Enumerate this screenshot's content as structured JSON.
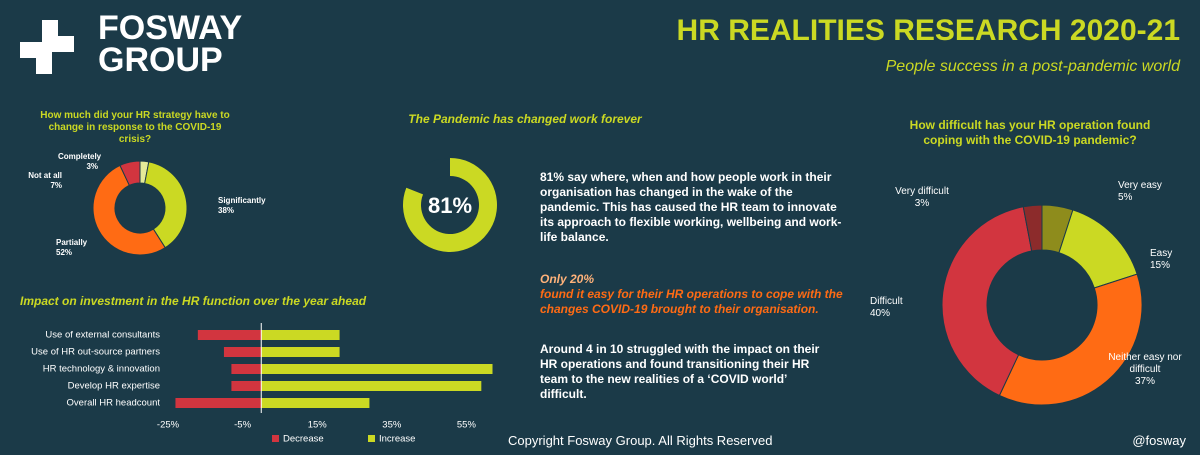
{
  "header": {
    "logo_line1": "FOSWAY",
    "logo_line2": "GROUP",
    "title": "HR REALITIES RESEARCH 2020-21",
    "subtitle": "People success in a post-pandemic world"
  },
  "chart_data": [
    {
      "type": "donut",
      "title": "How much did your HR strategy have to change in response to the COVID-19 crisis?",
      "categories": [
        "Completely",
        "Significantly",
        "Partially",
        "Not at all"
      ],
      "values": [
        3,
        38,
        52,
        7
      ],
      "value_labels": [
        "3%",
        "38%",
        "52%",
        "7%"
      ],
      "colors": [
        "#e4ea98",
        "#cbd923",
        "#ff6b14",
        "#d2353f"
      ]
    },
    {
      "type": "gauge",
      "title": "The Pandemic has changed work forever",
      "values": [
        81
      ],
      "value_labels": [
        "81%"
      ],
      "color": "#cbd923"
    },
    {
      "type": "diverging-bar",
      "title": "Impact on investment in the HR function over the year ahead",
      "categories": [
        "Use of external consultants",
        "Use of HR out-source partners",
        "HR technology & innovation",
        "Develop HR expertise",
        "Overall HR headcount"
      ],
      "series": [
        {
          "name": "Decrease",
          "color": "#d2353f",
          "values": [
            -17,
            -10,
            -8,
            -8,
            -23
          ]
        },
        {
          "name": "Increase",
          "color": "#cbd923",
          "values": [
            21,
            21,
            62,
            59,
            29
          ]
        }
      ],
      "xlim": [
        -25,
        65
      ],
      "xticks": [
        {
          "value": -25,
          "label": "-25%"
        },
        {
          "value": -5,
          "label": "-5%"
        },
        {
          "value": 15,
          "label": "15%"
        },
        {
          "value": 35,
          "label": "35%"
        },
        {
          "value": 55,
          "label": "55%"
        }
      ],
      "legend": "bottom"
    },
    {
      "type": "donut",
      "title": "How difficult has your HR operation found coping with the COVID-19 pandemic?",
      "categories": [
        "Very easy",
        "Easy",
        "Neither easy nor difficult",
        "Difficult",
        "Very difficult"
      ],
      "values": [
        5,
        15,
        37,
        40,
        3
      ],
      "value_labels": [
        "5%",
        "15%",
        "37%",
        "40%",
        "3%"
      ],
      "colors": [
        "#8e8c1c",
        "#cbd923",
        "#ff6b14",
        "#d2353f",
        "#8c2b2b"
      ]
    }
  ],
  "text": {
    "p1": "81%  say where, when and how people work in their organisation has changed in the wake of the pandemic. This has caused the HR team to innovate its approach to flexible working, wellbeing and work-life balance.",
    "p2_lead": "Only 20%",
    "p2_rest": "found it easy for their HR operations to cope with the changes COVID-19 brought to their organisation.",
    "p3": "Around 4 in 10 struggled with the impact on their HR operations and found transitioning their HR team to the new realities of a ‘COVID world’ difficult."
  },
  "footer": {
    "copyright": "Copyright Fosway Group.  All Rights Reserved",
    "handle": "@fosway"
  }
}
